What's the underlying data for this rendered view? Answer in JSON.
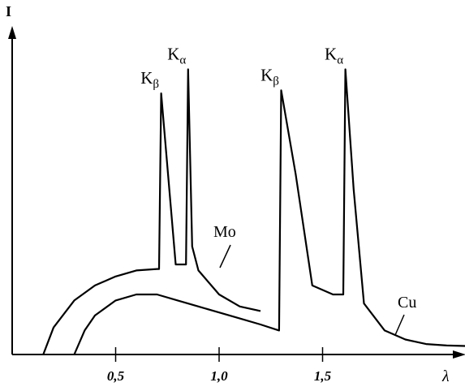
{
  "chart_data": {
    "type": "line",
    "ylabel": "I",
    "xlabel": "λ",
    "xlim": [
      0,
      2.25
    ],
    "ylim": [
      0,
      1.0
    ],
    "xticks": [
      {
        "value": 0.5,
        "label": "0,5"
      },
      {
        "value": 1.0,
        "label": "1,0"
      },
      {
        "value": 1.5,
        "label": "1,5"
      }
    ],
    "grid": false,
    "series": [
      {
        "name": "Mo",
        "points": [
          [
            0.15,
            0.0
          ],
          [
            0.2,
            0.09
          ],
          [
            0.3,
            0.18
          ],
          [
            0.4,
            0.23
          ],
          [
            0.5,
            0.26
          ],
          [
            0.6,
            0.28
          ],
          [
            0.7,
            0.285
          ],
          [
            0.71,
            0.285
          ],
          [
            0.72,
            0.87
          ],
          [
            0.79,
            0.3
          ],
          [
            0.84,
            0.3
          ],
          [
            0.85,
            0.95
          ],
          [
            0.87,
            0.36
          ],
          [
            0.9,
            0.28
          ],
          [
            1.0,
            0.2
          ],
          [
            1.1,
            0.16
          ],
          [
            1.2,
            0.145
          ]
        ],
        "peaks": [
          {
            "label_main": "K",
            "label_sub": "β",
            "x": 0.72,
            "y": 0.87
          },
          {
            "label_main": "K",
            "label_sub": "α",
            "x": 0.85,
            "y": 0.95
          }
        ]
      },
      {
        "name": "Cu",
        "points": [
          [
            0.3,
            0.0
          ],
          [
            0.35,
            0.08
          ],
          [
            0.4,
            0.13
          ],
          [
            0.5,
            0.18
          ],
          [
            0.6,
            0.2
          ],
          [
            0.7,
            0.2
          ],
          [
            0.8,
            0.18
          ],
          [
            0.9,
            0.16
          ],
          [
            1.0,
            0.14
          ],
          [
            1.1,
            0.12
          ],
          [
            1.2,
            0.1
          ],
          [
            1.29,
            0.08
          ],
          [
            1.3,
            0.88
          ],
          [
            1.37,
            0.6
          ],
          [
            1.45,
            0.23
          ],
          [
            1.55,
            0.2
          ],
          [
            1.6,
            0.2
          ],
          [
            1.61,
            0.95
          ],
          [
            1.65,
            0.55
          ],
          [
            1.7,
            0.17
          ],
          [
            1.8,
            0.08
          ],
          [
            1.9,
            0.05
          ],
          [
            2.0,
            0.035
          ],
          [
            2.1,
            0.03
          ],
          [
            2.2,
            0.028
          ]
        ],
        "peaks": [
          {
            "label_main": "K",
            "label_sub": "β",
            "x": 1.3,
            "y": 0.88
          },
          {
            "label_main": "K",
            "label_sub": "α",
            "x": 1.61,
            "y": 0.95
          }
        ]
      }
    ]
  }
}
